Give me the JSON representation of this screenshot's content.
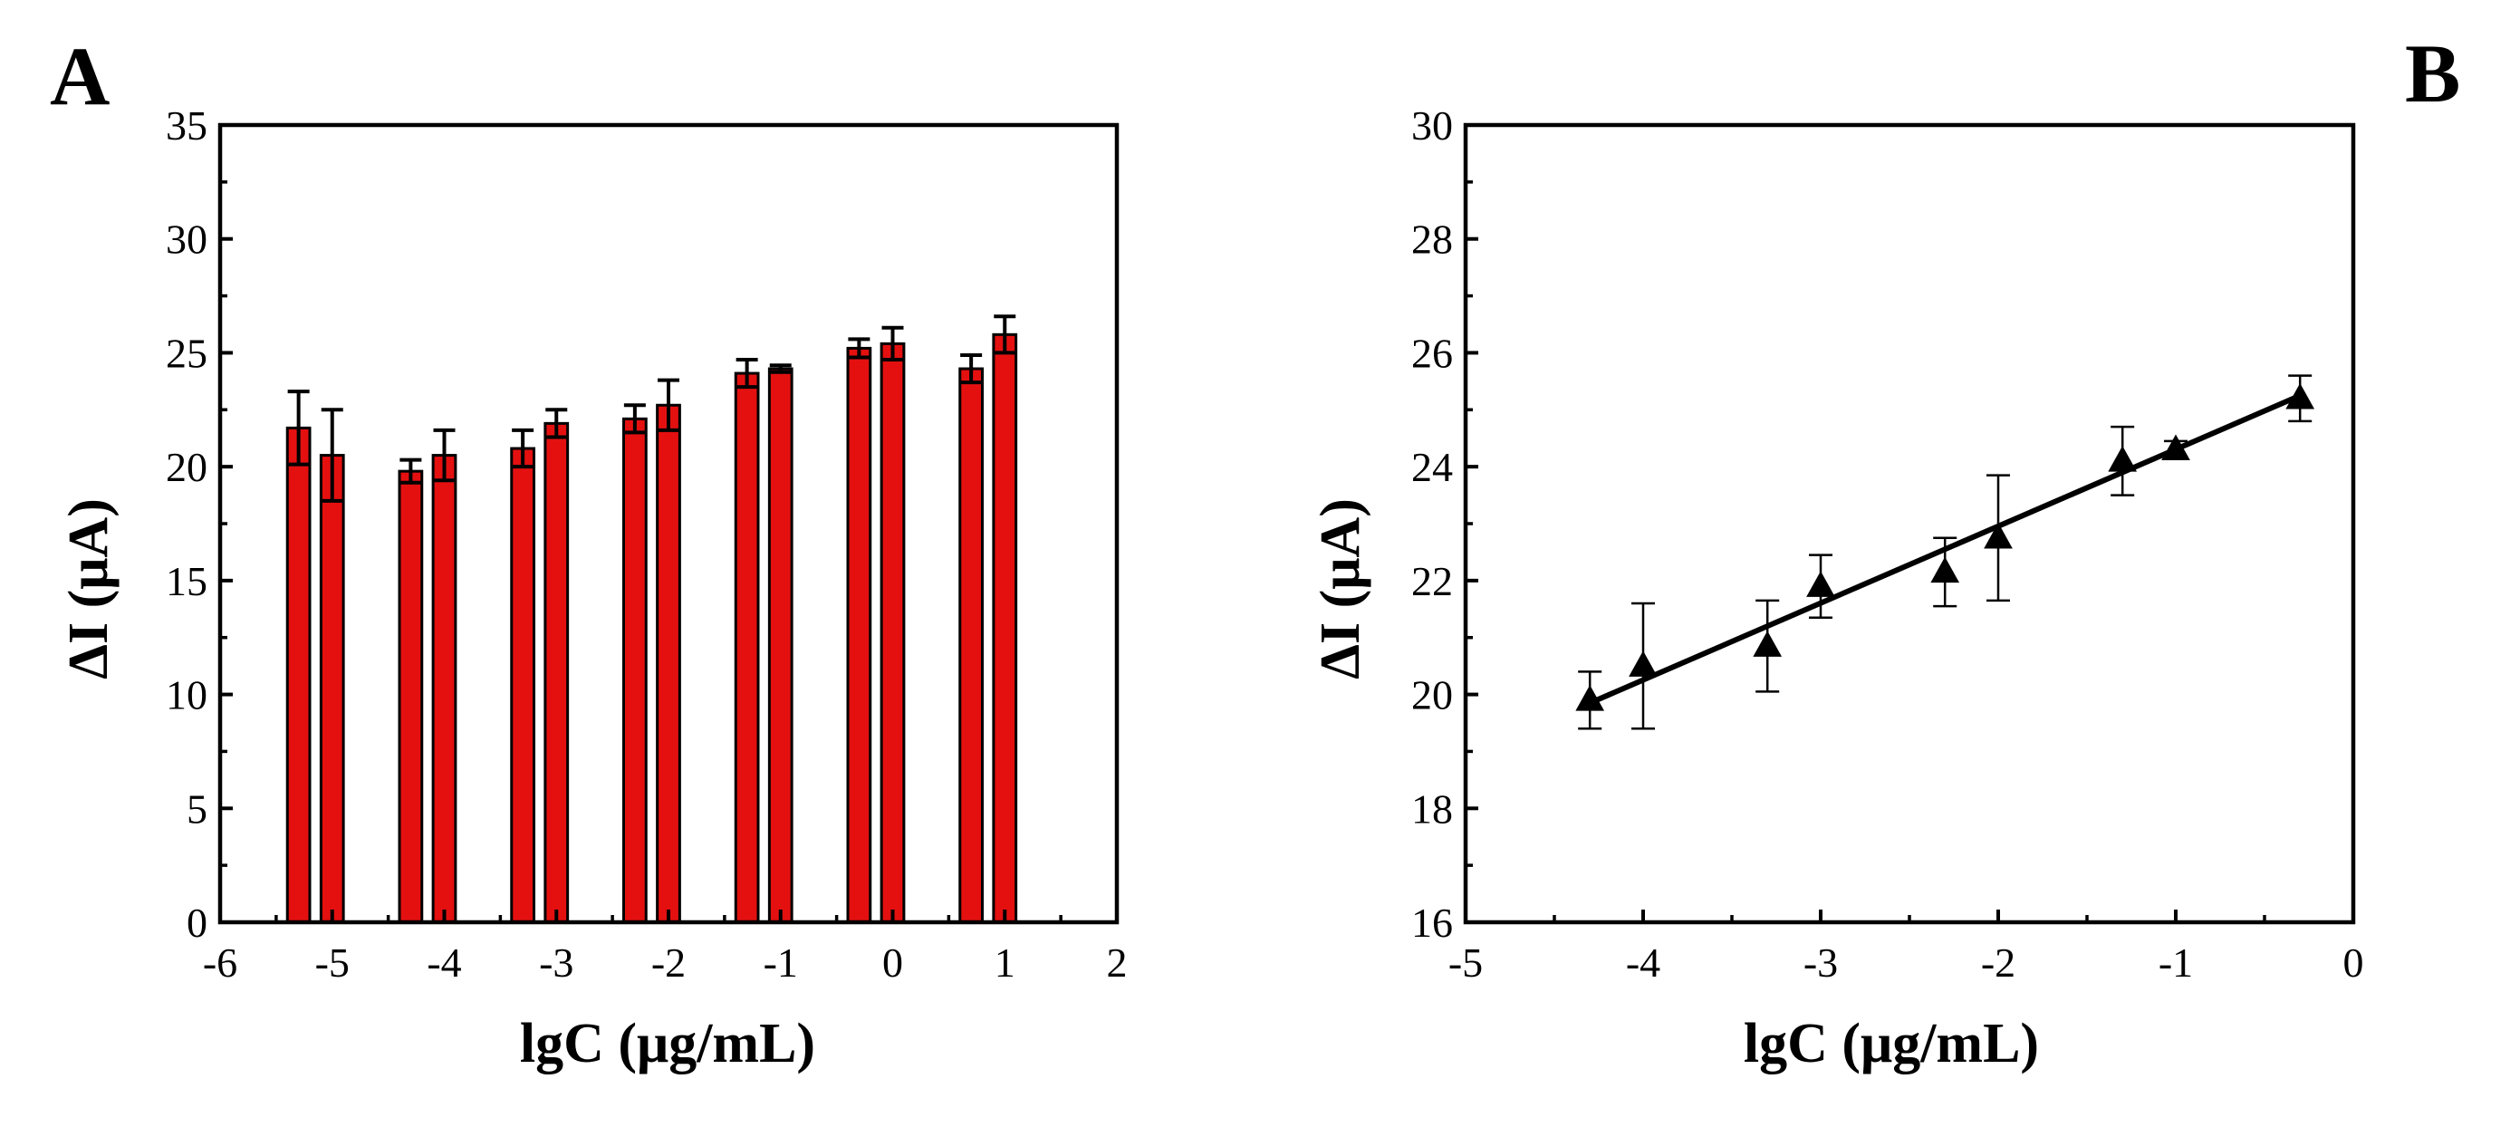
{
  "colors": {
    "bar": "#e41010",
    "ink": "#000000",
    "background": "#ffffff"
  },
  "chart_data": [
    {
      "panel": "A",
      "type": "bar",
      "title": "",
      "xlabel": "lgC (μg/mL)",
      "ylabel": "ΔI (μA)",
      "xlim": [
        -6,
        2
      ],
      "ylim": [
        0,
        35
      ],
      "xticks": [
        -6,
        -5,
        -4,
        -3,
        -2,
        -1,
        0,
        1,
        2
      ],
      "yticks": [
        0,
        5,
        10,
        15,
        20,
        25,
        30,
        35
      ],
      "xtick_labels": [
        "-6",
        "-5",
        "-4",
        "-3",
        "-2",
        "-1",
        "0",
        "1",
        "2"
      ],
      "ytick_labels": [
        "0",
        "5",
        "10",
        "15",
        "20",
        "25",
        "30",
        "35"
      ],
      "bar_width": 0.2,
      "grid": false,
      "bars": [
        {
          "x": -5.3,
          "value": 21.7,
          "error": 1.6
        },
        {
          "x": -5.0,
          "value": 20.5,
          "error": 2.0
        },
        {
          "x": -4.3,
          "value": 19.8,
          "error": 0.5
        },
        {
          "x": -4.0,
          "value": 20.5,
          "error": 1.1
        },
        {
          "x": -3.3,
          "value": 20.8,
          "error": 0.8
        },
        {
          "x": -3.0,
          "value": 21.9,
          "error": 0.6
        },
        {
          "x": -2.3,
          "value": 22.1,
          "error": 0.6
        },
        {
          "x": -2.0,
          "value": 22.7,
          "error": 1.1
        },
        {
          "x": -1.3,
          "value": 24.1,
          "error": 0.6
        },
        {
          "x": -1.0,
          "value": 24.3,
          "error": 0.15
        },
        {
          "x": -0.3,
          "value": 25.2,
          "error": 0.4
        },
        {
          "x": 0.0,
          "value": 25.4,
          "error": 0.7
        },
        {
          "x": 0.7,
          "value": 24.3,
          "error": 0.6
        },
        {
          "x": 1.0,
          "value": 25.8,
          "error": 0.8
        }
      ]
    },
    {
      "panel": "B",
      "type": "scatter",
      "title": "",
      "xlabel": "lgC (μg/mL)",
      "ylabel": "ΔI (μA)",
      "xlim": [
        -5,
        0
      ],
      "ylim": [
        16,
        30
      ],
      "xticks": [
        -5,
        -4,
        -3,
        -2,
        -1,
        0
      ],
      "yticks": [
        16,
        18,
        20,
        22,
        24,
        26,
        28,
        30
      ],
      "xtick_labels": [
        "-5",
        "-4",
        "-3",
        "-2",
        "-1",
        "0"
      ],
      "ytick_labels": [
        "16",
        "18",
        "20",
        "22",
        "24",
        "26",
        "28",
        "30"
      ],
      "marker": "triangle",
      "grid": false,
      "points": [
        {
          "x": -4.3,
          "y": 19.9,
          "error": 0.5
        },
        {
          "x": -4.0,
          "y": 20.5,
          "error": 1.1
        },
        {
          "x": -3.3,
          "y": 20.85,
          "error": 0.8
        },
        {
          "x": -3.0,
          "y": 21.9,
          "error": 0.55
        },
        {
          "x": -2.3,
          "y": 22.15,
          "error": 0.6
        },
        {
          "x": -2.0,
          "y": 22.75,
          "error": 1.1
        },
        {
          "x": -1.3,
          "y": 24.1,
          "error": 0.6
        },
        {
          "x": -1.0,
          "y": 24.3,
          "error": 0.15
        },
        {
          "x": -0.3,
          "y": 25.2,
          "error": 0.4
        }
      ],
      "fit_line": {
        "x": [
          -4.3,
          -0.3
        ],
        "y": [
          19.85,
          25.25
        ]
      }
    }
  ]
}
